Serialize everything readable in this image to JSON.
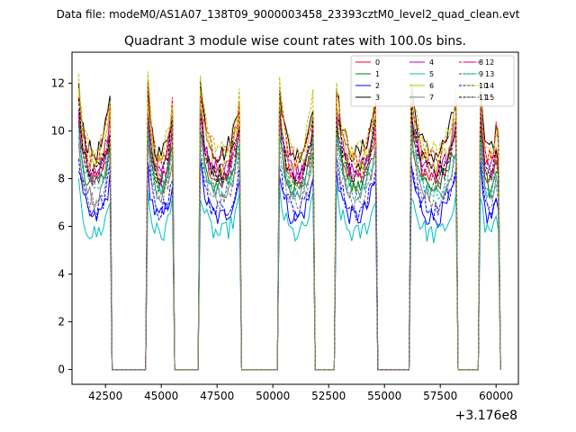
{
  "chart_data": {
    "type": "line",
    "suptitle": "Data file: modeM0/AS1A07_138T09_9000003458_23393cztM0_level2_quad_clean.evt",
    "title": "Quadrant 3 module wise count rates with 100.0s bins.",
    "xlabel": "",
    "ylabel": "",
    "offset_text": "+3.176e8",
    "xlim": [
      41000,
      61000
    ],
    "ylim": [
      -0.62,
      13.3
    ],
    "xticks": [
      42500,
      45000,
      47500,
      50000,
      52500,
      55000,
      57500,
      60000
    ],
    "xtick_labels": [
      "42500",
      "45000",
      "47500",
      "50000",
      "52500",
      "55000",
      "57500",
      "60000"
    ],
    "yticks": [
      0,
      2,
      4,
      6,
      8,
      10,
      12
    ],
    "ytick_labels": [
      "0",
      "2",
      "4",
      "6",
      "8",
      "10",
      "12"
    ],
    "grid": false,
    "legend_position": "top-right",
    "orbit_segments": [
      {
        "start": 41300,
        "end": 42700
      },
      {
        "start": 44400,
        "end": 45500
      },
      {
        "start": 46750,
        "end": 48500
      },
      {
        "start": 50300,
        "end": 51800
      },
      {
        "start": 52850,
        "end": 54600
      },
      {
        "start": 56200,
        "end": 58200
      },
      {
        "start": 59300,
        "end": 60100
      }
    ],
    "series": [
      {
        "name": "0",
        "color": "#ff0000",
        "dash": "solid",
        "level": 9.0
      },
      {
        "name": "1",
        "color": "#008000",
        "dash": "solid",
        "level": 8.6
      },
      {
        "name": "2",
        "color": "#0000ff",
        "dash": "solid",
        "level": 7.2
      },
      {
        "name": "3",
        "color": "#000000",
        "dash": "solid",
        "level": 10.2
      },
      {
        "name": "4",
        "color": "#bf00bf",
        "dash": "solid",
        "level": 9.4
      },
      {
        "name": "5",
        "color": "#00bfbf",
        "dash": "solid",
        "level": 6.4
      },
      {
        "name": "6",
        "color": "#bfbf00",
        "dash": "solid",
        "level": 9.7
      },
      {
        "name": "7",
        "color": "#808080",
        "dash": "solid",
        "level": 8.3
      },
      {
        "name": "8",
        "color": "#ff0000",
        "dash": "dashed",
        "level": 10.0
      },
      {
        "name": "9",
        "color": "#008000",
        "dash": "dashed",
        "level": 8.9
      },
      {
        "name": "10",
        "color": "#0000ff",
        "dash": "dashed",
        "level": 7.5
      },
      {
        "name": "11",
        "color": "#000000",
        "dash": "dashed",
        "level": 9.3
      },
      {
        "name": "12",
        "color": "#bf00bf",
        "dash": "dashed",
        "level": 9.1
      },
      {
        "name": "13",
        "color": "#00bfbf",
        "dash": "dashed",
        "level": 8.4
      },
      {
        "name": "14",
        "color": "#bfbf00",
        "dash": "dashed",
        "level": 10.3
      },
      {
        "name": "15",
        "color": "#808080",
        "dash": "dashed",
        "level": 8.0
      }
    ]
  }
}
